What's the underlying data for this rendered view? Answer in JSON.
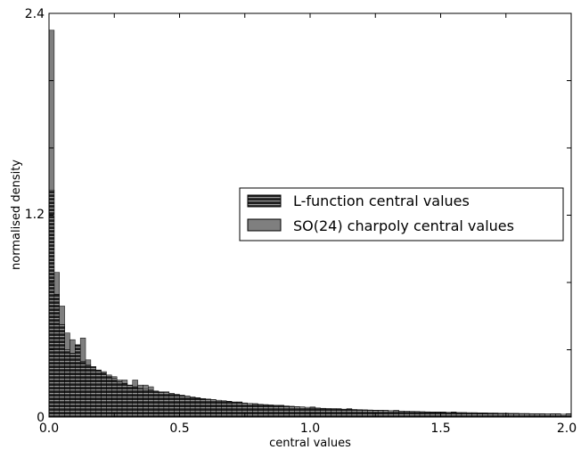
{
  "chart_data": {
    "type": "bar",
    "title": "",
    "xlabel": "central values",
    "ylabel": "normalised density",
    "xlim": [
      0.0,
      2.0
    ],
    "ylim": [
      0.0,
      2.4
    ],
    "xticks": [
      "0.0",
      "0.5",
      "1.0",
      "1.5",
      "2.0"
    ],
    "yticks": [
      "0",
      "1.2",
      "2.4"
    ],
    "bin_width": 0.02,
    "legend_position": "center-right",
    "series": [
      {
        "name": "L-function central values",
        "style": "hatched",
        "color": "#1e1e1e",
        "hatch_color": "#9a9a9a",
        "values": [
          1.35,
          0.73,
          0.55,
          0.4,
          0.38,
          0.43,
          0.33,
          0.31,
          0.3,
          0.28,
          0.27,
          0.24,
          0.23,
          0.21,
          0.2,
          0.19,
          0.18,
          0.17,
          0.165,
          0.16,
          0.155,
          0.15,
          0.145,
          0.14,
          0.135,
          0.13,
          0.125,
          0.12,
          0.115,
          0.11,
          0.107,
          0.104,
          0.1,
          0.097,
          0.094,
          0.09,
          0.087,
          0.084,
          0.081,
          0.078,
          0.076,
          0.074,
          0.072,
          0.07,
          0.068,
          0.066,
          0.064,
          0.062,
          0.06,
          0.058,
          0.056,
          0.054,
          0.052,
          0.05,
          0.049,
          0.048,
          0.047,
          0.046,
          0.045,
          0.044,
          0.043,
          0.042,
          0.041,
          0.04,
          0.039,
          0.038,
          0.037,
          0.036,
          0.035,
          0.034,
          0.033,
          0.032,
          0.031,
          0.03,
          0.029,
          0.029,
          0.028,
          0.028,
          0.027,
          0.027,
          0.026,
          0.026,
          0.025,
          0.025,
          0.024,
          0.024,
          0.023,
          0.023,
          0.022,
          0.022,
          0.021,
          0.021,
          0.02,
          0.02,
          0.019,
          0.019,
          0.018,
          0.018,
          0.017,
          0.017
        ]
      },
      {
        "name": "SO(24) charpoly central values",
        "style": "solid",
        "color": "#7f7f7f",
        "values": [
          2.3,
          0.86,
          0.66,
          0.5,
          0.46,
          0.36,
          0.47,
          0.34,
          0.28,
          0.26,
          0.25,
          0.25,
          0.24,
          0.22,
          0.22,
          0.19,
          0.22,
          0.19,
          0.19,
          0.18,
          0.15,
          0.14,
          0.15,
          0.14,
          0.13,
          0.12,
          0.12,
          0.11,
          0.11,
          0.11,
          0.1,
          0.1,
          0.09,
          0.09,
          0.09,
          0.08,
          0.09,
          0.08,
          0.08,
          0.08,
          0.07,
          0.07,
          0.07,
          0.06,
          0.07,
          0.06,
          0.06,
          0.06,
          0.06,
          0.05,
          0.06,
          0.05,
          0.05,
          0.05,
          0.05,
          0.05,
          0.04,
          0.05,
          0.04,
          0.04,
          0.04,
          0.04,
          0.04,
          0.04,
          0.04,
          0.03,
          0.04,
          0.03,
          0.03,
          0.03,
          0.03,
          0.03,
          0.03,
          0.03,
          0.03,
          0.03,
          0.02,
          0.03,
          0.02,
          0.02,
          0.02,
          0.02,
          0.02,
          0.02,
          0.02,
          0.02,
          0.02,
          0.02,
          0.02,
          0.02,
          0.02,
          0.02,
          0.02,
          0.02,
          0.02,
          0.01,
          0.02,
          0.02,
          0.01,
          0.02
        ]
      }
    ]
  }
}
